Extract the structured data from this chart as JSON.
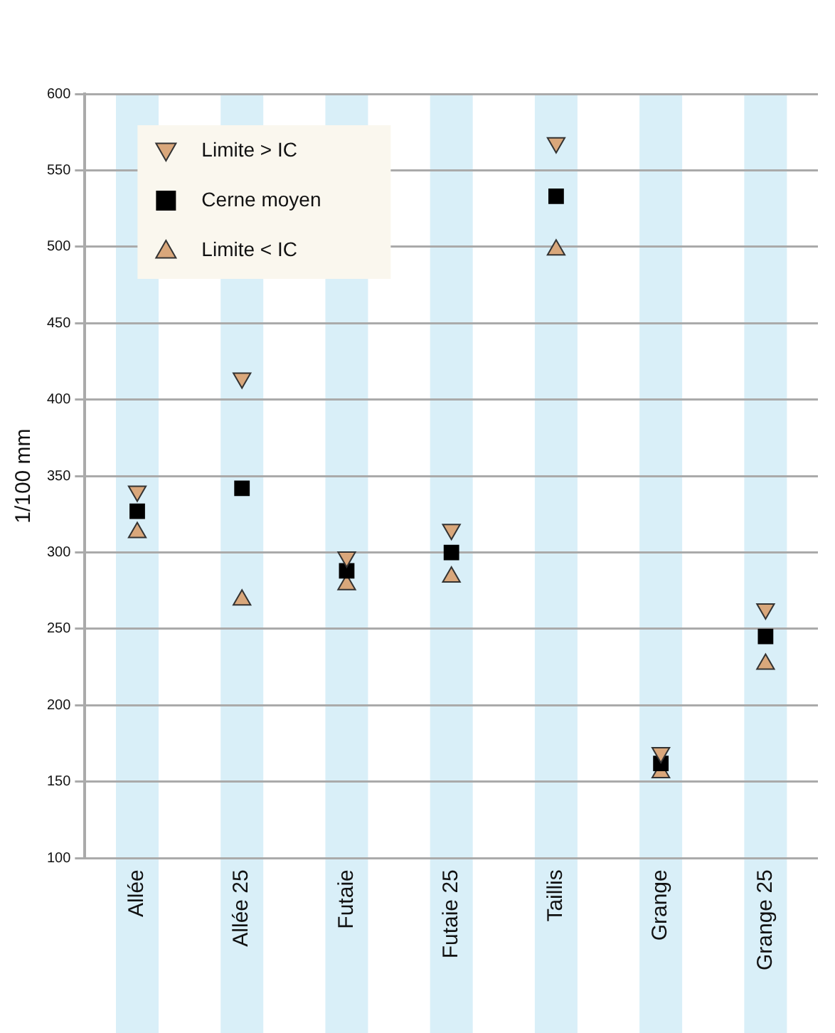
{
  "chart_data": {
    "type": "scatter",
    "ylabel": "1/100 mm",
    "categories": [
      "Allée",
      "Allée 25",
      "Futaie",
      "Futaie 25",
      "Taillis",
      "Grange",
      "Grange 25"
    ],
    "series": [
      {
        "name": "Limite > IC",
        "color": "#d9a77b",
        "marker": "triangle_down",
        "values": [
          340,
          414,
          297,
          315,
          568,
          169,
          263
        ]
      },
      {
        "name": "Cerne moyen",
        "color": "#000000",
        "marker": "square",
        "values": [
          327,
          342,
          288,
          300,
          533,
          162,
          245
        ]
      },
      {
        "name": "Limite < IC",
        "color": "#d9a77b",
        "marker": "triangle",
        "values": [
          313,
          269,
          279,
          284,
          498,
          156,
          227
        ]
      }
    ],
    "ylim": [
      100,
      600
    ],
    "yticks": [
      100,
      150,
      200,
      250,
      300,
      350,
      400,
      450,
      500,
      550,
      600
    ],
    "bands": [
      {
        "axis": "x",
        "from": "Allée",
        "to": "Allée",
        "color": "#d9eff8"
      },
      {
        "axis": "x",
        "from": "Allée 25",
        "to": "Allée 25",
        "color": "#d9eff8"
      },
      {
        "axis": "x",
        "from": "Futaie",
        "to": "Futaie",
        "color": "#d9eff8"
      },
      {
        "axis": "x",
        "from": "Futaie 25",
        "to": "Futaie 25",
        "color": "#d9eff8"
      },
      {
        "axis": "x",
        "from": "Taillis",
        "to": "Taillis",
        "color": "#d9eff8"
      },
      {
        "axis": "x",
        "from": "Grange",
        "to": "Grange",
        "color": "#d9eff8"
      },
      {
        "axis": "x",
        "from": "Grange 25",
        "to": "Grange 25",
        "color": "#d9eff8"
      }
    ],
    "grid": "y",
    "legend": "top left"
  }
}
